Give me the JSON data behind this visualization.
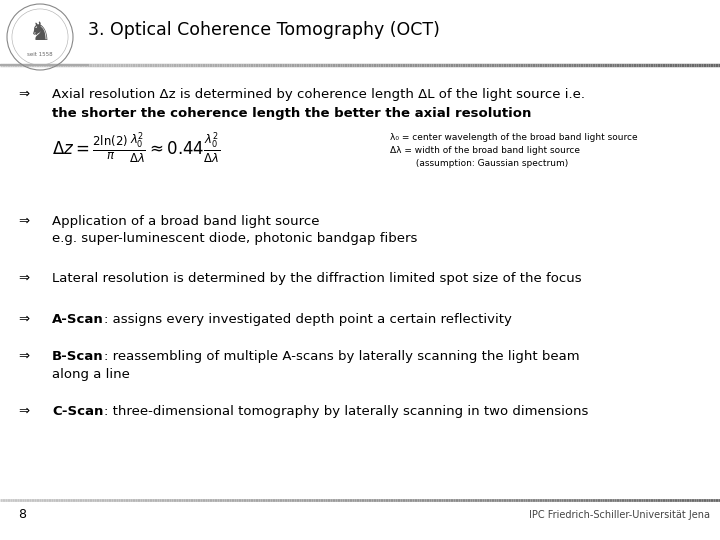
{
  "title": "3. Optical Coherence Tomography (OCT)",
  "background_color": "#ffffff",
  "page_number": "8",
  "footer_text": "IPC Friedrich-Schiller-Universität Jena",
  "bullet_char": "⇒",
  "font_size": 9.5,
  "title_font_size": 12.5,
  "formula_annotation": "λ₀ = center wavelength of the broad band light source\nΔλ = width of the broad band light source\n         (assumption: Gaussian spectrum)",
  "bullets": [
    {
      "text": "Axial resolution Δz is determined by coherence length ΔL of the light source i.e.",
      "bold_prefix": null,
      "continuation": "the shorter the coherence length the better the axial resolution",
      "continuation_bold": true
    },
    {
      "text": "Application of a broad band light source",
      "bold_prefix": null,
      "continuation": "e.g. super-luminescent diode, photonic bandgap fibers",
      "continuation_bold": false
    },
    {
      "text": "Lateral resolution is determined by the diffraction limited spot size of the focus",
      "bold_prefix": null,
      "continuation": null,
      "continuation_bold": false
    },
    {
      "text": ": assigns every investigated depth point a certain reflectivity",
      "bold_prefix": "A-Scan",
      "continuation": null,
      "continuation_bold": false
    },
    {
      "text": ": reassembling of multiple A-scans by laterally scanning the light beam",
      "bold_prefix": "B-Scan",
      "continuation": "along a line",
      "continuation_bold": false
    },
    {
      "text": ": three-dimensional tomography by laterally scanning in two dimensions",
      "bold_prefix": "C-Scan",
      "continuation": null,
      "continuation_bold": false
    }
  ]
}
